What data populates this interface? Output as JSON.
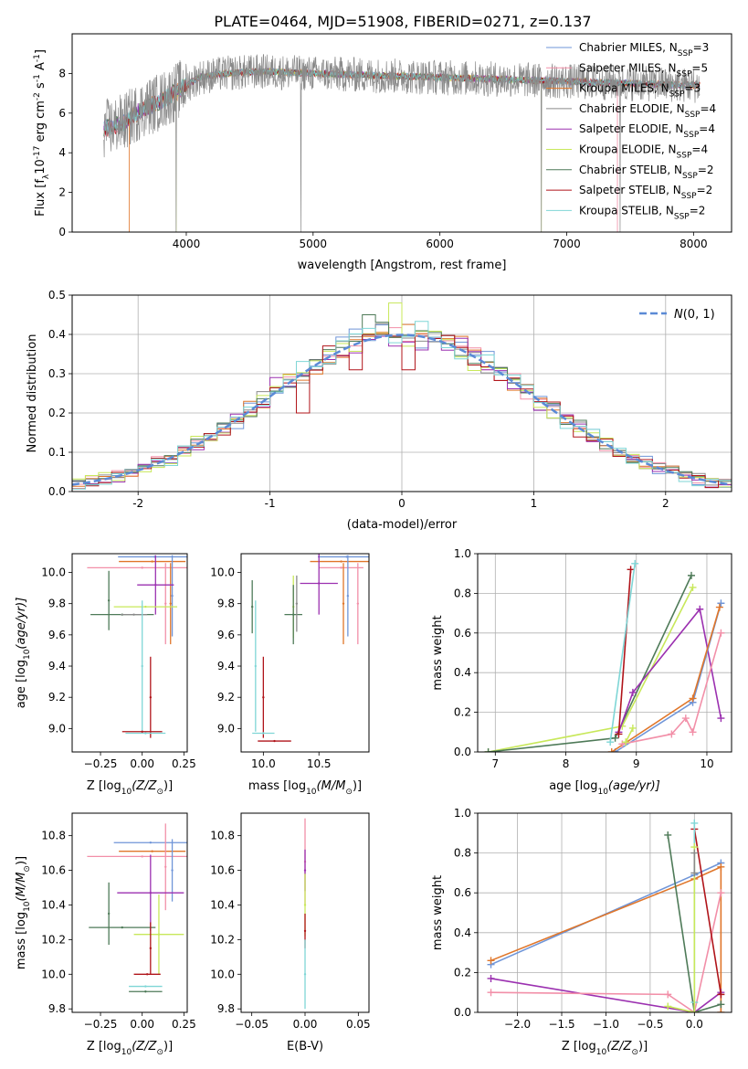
{
  "figure": {
    "title": "PLATE=0464, MJD=51908, FIBERID=0271, z=0.137"
  },
  "colors": {
    "chabrier_miles": "#6f95d8",
    "salpeter_miles": "#f28fa8",
    "kroupa_miles": "#e0762a",
    "chabrier_elodie": "#8a8a8a",
    "salpeter_elodie": "#9b30b0",
    "kroupa_elodie": "#c8e85a",
    "chabrier_stelib": "#4e7a58",
    "salpeter_stelib": "#b0141a",
    "kroupa_stelib": "#7fd6d6",
    "normal": "#5b8ad6"
  },
  "chart_data": [
    {
      "id": "spectrum",
      "type": "line",
      "title": "",
      "xlabel": "wavelength [Angstrom, rest frame]",
      "ylabel": "Flux [f",
      "ylabel_parts": [
        "Flux [f",
        "λ",
        "10",
        "-17",
        " erg cm",
        "-2",
        " s",
        "-1",
        " A",
        "-1",
        "]"
      ],
      "xlim": [
        3100,
        8300
      ],
      "ylim": [
        0,
        10
      ],
      "xticks": [
        4000,
        5000,
        6000,
        7000,
        8000
      ],
      "yticks": [
        0,
        2,
        4,
        6,
        8
      ],
      "grid": false,
      "legend_position": "top-right",
      "legend": [
        {
          "key": "chabrier_miles",
          "label": "Chabrier MILES, N",
          "sub": "SSP",
          "suffix": "=3"
        },
        {
          "key": "salpeter_miles",
          "label": "Salpeter MILES, N",
          "sub": "SSP",
          "suffix": "=5"
        },
        {
          "key": "kroupa_miles",
          "label": "Kroupa MILES, N",
          "sub": "SSP",
          "suffix": "=3"
        },
        {
          "key": "chabrier_elodie",
          "label": "Chabrier ELODIE, N",
          "sub": "SSP",
          "suffix": "=4"
        },
        {
          "key": "salpeter_elodie",
          "label": "Salpeter ELODIE, N",
          "sub": "SSP",
          "suffix": "=4"
        },
        {
          "key": "kroupa_elodie",
          "label": "Kroupa ELODIE, N",
          "sub": "SSP",
          "suffix": "=4"
        },
        {
          "key": "chabrier_stelib",
          "label": "Chabrier STELIB, N",
          "sub": "SSP",
          "suffix": "=2"
        },
        {
          "key": "salpeter_stelib",
          "label": "Salpeter STELIB, N",
          "sub": "SSP",
          "suffix": "=2"
        },
        {
          "key": "kroupa_stelib",
          "label": "Kroupa STELIB, N",
          "sub": "SSP",
          "suffix": "=2"
        }
      ],
      "data_trend": {
        "x": [
          3350,
          3500,
          3650,
          3800,
          3950,
          4100,
          4300,
          4600,
          5000,
          5500,
          6000,
          6500,
          7000,
          7500,
          8000,
          8050
        ],
        "y": [
          5.2,
          5.5,
          6.2,
          6.6,
          7.2,
          7.8,
          8.0,
          8.1,
          8.0,
          7.9,
          7.8,
          7.7,
          7.6,
          7.5,
          7.4,
          7.4
        ]
      },
      "model_cutoffs": {
        "kroupa_miles_start": 3550,
        "kroupa_elodie_start": 3920,
        "kroupa_elodie_end": 6800,
        "salpeter_miles_end": 7400
      },
      "spikes": [
        {
          "x": 3920,
          "y": 0.0
        },
        {
          "x": 4905,
          "y": 0.0
        },
        {
          "x": 6800,
          "y": 0.0
        },
        {
          "x": 7420,
          "y": 0.0
        }
      ]
    },
    {
      "id": "residuals",
      "type": "bar",
      "title": "",
      "xlabel": "(data-model)/error",
      "ylabel": "Normed distribution",
      "xlim": [
        -2.5,
        2.5
      ],
      "ylim": [
        0,
        0.5
      ],
      "xticks": [
        -2,
        -1,
        0,
        1,
        2
      ],
      "yticks": [
        0.0,
        0.1,
        0.2,
        0.3,
        0.4,
        0.5
      ],
      "grid": true,
      "legend_position": "top-right",
      "legend": [
        {
          "key": "normal",
          "label": "N(0, 1)"
        }
      ],
      "bin_width": 0.1,
      "series_keys": [
        "chabrier_miles",
        "salpeter_miles",
        "kroupa_miles",
        "chabrier_elodie",
        "salpeter_elodie",
        "kroupa_elodie",
        "chabrier_stelib",
        "salpeter_stelib",
        "kroupa_stelib"
      ],
      "highlight_bins": [
        {
          "x": -0.95,
          "key": "salpeter_elodie",
          "value": 0.29
        },
        {
          "x": -0.75,
          "key": "salpeter_stelib",
          "value": 0.2
        },
        {
          "x": -0.35,
          "key": "salpeter_stelib",
          "value": 0.31
        },
        {
          "x": -0.25,
          "key": "chabrier_stelib",
          "value": 0.45
        },
        {
          "x": -0.05,
          "key": "kroupa_elodie",
          "value": 0.48
        },
        {
          "x": 0.05,
          "key": "salpeter_stelib",
          "value": 0.31
        },
        {
          "x": 0.25,
          "key": "salpeter_elodie",
          "value": 0.39
        }
      ]
    },
    {
      "id": "z_age",
      "type": "scatter",
      "xlabel": "Z [log",
      "xlabel_parts": [
        "Z [log",
        "10",
        "(Z/Z",
        "⊙",
        ")]"
      ],
      "ylabel_parts": [
        "age  [log",
        "10",
        "(age/yr)]"
      ],
      "xlim": [
        -0.42,
        0.27
      ],
      "ylim": [
        8.85,
        10.12
      ],
      "xticks": [
        -0.25,
        0.0,
        0.25
      ],
      "xticklabels": [
        "−0.25",
        "0.00",
        "0.25"
      ],
      "yticks": [
        9.0,
        9.2,
        9.4,
        9.6,
        9.8,
        10.0
      ],
      "grid": false,
      "points": [
        {
          "key": "chabrier_miles",
          "x": 0.075,
          "y": 10.1,
          "xerr": 0.22,
          "yerr": 0.0
        },
        {
          "key": "kroupa_miles",
          "x": 0.06,
          "y": 10.07,
          "xerr": 0.2,
          "yerr": 0.0
        },
        {
          "key": "salpeter_miles",
          "x": 0.0,
          "y": 10.03,
          "xerr": 0.33,
          "yerr": 0.0
        },
        {
          "key": "salpeter_miles",
          "x": 0.14,
          "y": 9.8,
          "xerr": 0.0,
          "yerr": 0.26
        },
        {
          "key": "chabrier_miles",
          "x": 0.18,
          "y": 9.85,
          "xerr": 0.0,
          "yerr": 0.26
        },
        {
          "key": "kroupa_miles",
          "x": 0.17,
          "y": 9.8,
          "xerr": 0.0,
          "yerr": 0.26
        },
        {
          "key": "chabrier_stelib",
          "x": -0.2,
          "y": 9.82,
          "xerr": 0.0,
          "yerr": 0.19
        },
        {
          "key": "chabrier_stelib",
          "x": -0.12,
          "y": 9.73,
          "xerr": 0.19,
          "yerr": 0.0
        },
        {
          "key": "salpeter_elodie",
          "x": 0.08,
          "y": 9.92,
          "xerr": 0.11,
          "yerr": 0.19
        },
        {
          "key": "kroupa_elodie",
          "x": 0.02,
          "y": 9.78,
          "xerr": 0.19,
          "yerr": 0.0
        },
        {
          "key": "chabrier_elodie",
          "x": -0.05,
          "y": 9.73,
          "xerr": 0.08,
          "yerr": 0.0
        },
        {
          "key": "kroupa_stelib",
          "x": 0.0,
          "y": 9.4,
          "xerr": 0.0,
          "yerr": 0.42
        },
        {
          "key": "salpeter_stelib",
          "x": 0.05,
          "y": 9.2,
          "xerr": 0.0,
          "yerr": 0.26
        },
        {
          "key": "kroupa_stelib",
          "x": 0.02,
          "y": 8.97,
          "xerr": 0.12,
          "yerr": 0.0
        },
        {
          "key": "salpeter_stelib",
          "x": 0.0,
          "y": 8.98,
          "xerr": 0.12,
          "yerr": 0.0
        }
      ]
    },
    {
      "id": "mass_age",
      "type": "scatter",
      "xlabel_parts": [
        "mass [log",
        "10",
        "(M/M",
        "⊙",
        ")]"
      ],
      "xlim": [
        9.8,
        10.95
      ],
      "ylim": [
        8.85,
        10.12
      ],
      "xticks": [
        10.0,
        10.5
      ],
      "xticklabels": [
        "10.0",
        "10.5"
      ],
      "yticks": [
        9.0,
        9.2,
        9.4,
        9.6,
        9.8,
        10.0
      ],
      "grid": false,
      "points": [
        {
          "key": "chabrier_miles",
          "x": 10.75,
          "y": 10.1,
          "xerr": 0.26,
          "yerr": 0.0
        },
        {
          "key": "kroupa_miles",
          "x": 10.7,
          "y": 10.07,
          "xerr": 0.28,
          "yerr": 0.0
        },
        {
          "key": "salpeter_miles",
          "x": 10.7,
          "y": 10.03,
          "xerr": 0.2,
          "yerr": 0.0
        },
        {
          "key": "salpeter_miles",
          "x": 10.85,
          "y": 9.8,
          "xerr": 0.0,
          "yerr": 0.26
        },
        {
          "key": "chabrier_miles",
          "x": 10.76,
          "y": 9.85,
          "xerr": 0.0,
          "yerr": 0.26
        },
        {
          "key": "kroupa_miles",
          "x": 10.72,
          "y": 9.8,
          "xerr": 0.0,
          "yerr": 0.26
        },
        {
          "key": "salpeter_elodie",
          "x": 10.5,
          "y": 9.93,
          "xerr": 0.17,
          "yerr": 0.2
        },
        {
          "key": "kroupa_elodie",
          "x": 10.27,
          "y": 9.78,
          "xerr": 0.0,
          "yerr": 0.2
        },
        {
          "key": "chabrier_stelib",
          "x": 10.27,
          "y": 9.73,
          "xerr": 0.08,
          "yerr": 0.19
        },
        {
          "key": "chabrier_elodie",
          "x": 10.3,
          "y": 9.8,
          "xerr": 0.0,
          "yerr": 0.18
        },
        {
          "key": "chabrier_stelib",
          "x": 9.9,
          "y": 9.78,
          "xerr": 0.0,
          "yerr": 0.17
        },
        {
          "key": "kroupa_stelib",
          "x": 9.93,
          "y": 9.4,
          "xerr": 0.0,
          "yerr": 0.42
        },
        {
          "key": "salpeter_stelib",
          "x": 10.0,
          "y": 9.2,
          "xerr": 0.0,
          "yerr": 0.26
        },
        {
          "key": "kroupa_stelib",
          "x": 10.0,
          "y": 8.97,
          "xerr": 0.1,
          "yerr": 0.0
        },
        {
          "key": "salpeter_stelib",
          "x": 10.1,
          "y": 8.92,
          "xerr": 0.15,
          "yerr": 0.0
        }
      ]
    },
    {
      "id": "age_weight",
      "type": "line",
      "xlabel_parts": [
        "age  [log",
        "10",
        "(age/yr)]"
      ],
      "ylabel": "mass weight",
      "xlim": [
        6.75,
        10.35
      ],
      "ylim": [
        0,
        1
      ],
      "xticks": [
        7,
        8,
        9,
        10
      ],
      "yticks": [
        0.0,
        0.2,
        0.4,
        0.6,
        0.8,
        1.0
      ],
      "grid": true,
      "series": [
        {
          "key": "kroupa_elodie",
          "x": [
            6.9,
            8.8,
            9.8
          ],
          "y": [
            0.0,
            0.13,
            0.83
          ]
        },
        {
          "key": "chabrier_stelib",
          "x": [
            6.9,
            8.7,
            9.78
          ],
          "y": [
            0.0,
            0.07,
            0.89
          ]
        },
        {
          "key": "salpeter_elodie",
          "x": [
            8.75,
            8.95,
            9.9,
            10.2
          ],
          "y": [
            0.1,
            0.3,
            0.72,
            0.17
          ]
        },
        {
          "key": "salpeter_stelib",
          "x": [
            8.75,
            8.92
          ],
          "y": [
            0.09,
            0.92
          ]
        },
        {
          "key": "kroupa_stelib",
          "x": [
            8.63,
            8.98
          ],
          "y": [
            0.05,
            0.95
          ]
        },
        {
          "key": "chabrier_miles",
          "x": [
            8.7,
            9.8,
            10.2
          ],
          "y": [
            0.0,
            0.25,
            0.75
          ]
        },
        {
          "key": "kroupa_miles",
          "x": [
            8.65,
            9.8,
            10.18
          ],
          "y": [
            0.0,
            0.27,
            0.73
          ]
        },
        {
          "key": "salpeter_miles",
          "x": [
            8.8,
            9.5,
            9.7,
            9.8,
            10.2
          ],
          "y": [
            0.04,
            0.09,
            0.17,
            0.1,
            0.6
          ]
        },
        {
          "key": "kroupa_elodie",
          "x": [
            8.85,
            8.95
          ],
          "y": [
            0.05,
            0.12
          ]
        }
      ]
    },
    {
      "id": "z_mass",
      "type": "scatter",
      "xlabel_parts": [
        "Z [log",
        "10",
        "(Z/Z",
        "⊙",
        ")]"
      ],
      "ylabel_parts": [
        "mass [log",
        "10",
        "(M/M",
        "⊙",
        ")]"
      ],
      "xlim": [
        -0.42,
        0.27
      ],
      "ylim": [
        9.78,
        10.93
      ],
      "xticks": [
        -0.25,
        0.0,
        0.25
      ],
      "xticklabels": [
        "−0.25",
        "0.00",
        "0.25"
      ],
      "yticks": [
        9.8,
        10.0,
        10.2,
        10.4,
        10.6,
        10.8
      ],
      "grid": false,
      "points": [
        {
          "key": "chabrier_miles",
          "x": 0.05,
          "y": 10.76,
          "xerr": 0.22,
          "yerr": 0.0
        },
        {
          "key": "kroupa_miles",
          "x": 0.06,
          "y": 10.71,
          "xerr": 0.2,
          "yerr": 0.0
        },
        {
          "key": "salpeter_miles",
          "x": 0.0,
          "y": 10.68,
          "xerr": 0.33,
          "yerr": 0.0
        },
        {
          "key": "salpeter_miles",
          "x": 0.14,
          "y": 10.62,
          "xerr": 0.0,
          "yerr": 0.25
        },
        {
          "key": "chabrier_miles",
          "x": 0.18,
          "y": 10.6,
          "xerr": 0.0,
          "yerr": 0.18
        },
        {
          "key": "salpeter_elodie",
          "x": 0.05,
          "y": 10.47,
          "xerr": 0.2,
          "yerr": 0.22
        },
        {
          "key": "chabrier_stelib",
          "x": -0.2,
          "y": 10.35,
          "xerr": 0.0,
          "yerr": 0.18
        },
        {
          "key": "chabrier_stelib",
          "x": -0.12,
          "y": 10.27,
          "xerr": 0.2,
          "yerr": 0.0
        },
        {
          "key": "kroupa_elodie",
          "x": 0.1,
          "y": 10.23,
          "xerr": 0.15,
          "yerr": 0.23
        },
        {
          "key": "salpeter_stelib",
          "x": 0.05,
          "y": 10.15,
          "xerr": 0.0,
          "yerr": 0.15
        },
        {
          "key": "salpeter_stelib",
          "x": 0.03,
          "y": 10.0,
          "xerr": 0.08,
          "yerr": 0.0
        },
        {
          "key": "kroupa_stelib",
          "x": 0.02,
          "y": 9.93,
          "xerr": 0.1,
          "yerr": 0.0
        },
        {
          "key": "chabrier_stelib",
          "x": 0.02,
          "y": 9.9,
          "xerr": 0.1,
          "yerr": 0.0
        }
      ]
    },
    {
      "id": "ebv_mass",
      "type": "scatter",
      "xlabel": "E(B-V)",
      "xlim": [
        -0.06,
        0.06
      ],
      "ylim": [
        9.78,
        10.93
      ],
      "xticks": [
        -0.05,
        0.0,
        0.05
      ],
      "xticklabels": [
        "−0.05",
        "0.00",
        "0.05"
      ],
      "yticks": [
        9.8,
        10.0,
        10.2,
        10.4,
        10.6,
        10.8
      ],
      "grid": false,
      "points": [
        {
          "key": "salpeter_miles",
          "x": 0.0,
          "y": 10.65,
          "xerr": 0.0,
          "yerr": 0.25
        },
        {
          "key": "salpeter_elodie",
          "x": 0.0,
          "y": 10.6,
          "xerr": 0.0,
          "yerr": 0.12
        },
        {
          "key": "kroupa_elodie",
          "x": 0.0,
          "y": 10.4,
          "xerr": 0.0,
          "yerr": 0.18
        },
        {
          "key": "salpeter_stelib",
          "x": 0.0,
          "y": 10.25,
          "xerr": 0.0,
          "yerr": 0.1
        },
        {
          "key": "kroupa_stelib",
          "x": 0.0,
          "y": 10.0,
          "xerr": 0.0,
          "yerr": 0.2
        }
      ]
    },
    {
      "id": "z_weight",
      "type": "line",
      "xlabel_parts": [
        "Z [log",
        "10",
        "(Z/Z",
        "⊙",
        ")]"
      ],
      "ylabel": "mass weight",
      "xlim": [
        -2.45,
        0.42
      ],
      "ylim": [
        0,
        1
      ],
      "xticks": [
        -2.0,
        -1.5,
        -1.0,
        -0.5,
        0.0
      ],
      "xticklabels": [
        "−2.0",
        "−1.5",
        "−1.0",
        "−0.5",
        "0.0"
      ],
      "yticks": [
        0.0,
        0.2,
        0.4,
        0.6,
        0.8,
        1.0
      ],
      "grid": true,
      "series": [
        {
          "key": "chabrier_miles",
          "x": [
            -2.3,
            0.0,
            0.3
          ],
          "y": [
            0.24,
            0.69,
            0.75
          ]
        },
        {
          "key": "kroupa_miles",
          "x": [
            -2.3,
            0.0,
            0.3,
            0.3
          ],
          "y": [
            0.26,
            0.67,
            0.73,
            0.0
          ]
        },
        {
          "key": "salpeter_elodie",
          "x": [
            -2.3,
            0.0,
            0.3
          ],
          "y": [
            0.17,
            0.0,
            0.1
          ]
        },
        {
          "key": "salpeter_miles",
          "x": [
            -2.3,
            -0.3,
            0.0,
            0.3
          ],
          "y": [
            0.1,
            0.09,
            0.0,
            0.6
          ]
        },
        {
          "key": "chabrier_stelib",
          "x": [
            -0.3,
            0.0,
            0.3
          ],
          "y": [
            0.89,
            0.0,
            0.04
          ]
        },
        {
          "key": "salpeter_stelib",
          "x": [
            0.0,
            0.3
          ],
          "y": [
            0.92,
            0.09
          ]
        },
        {
          "key": "kroupa_stelib",
          "x": [
            0.0,
            0.0
          ],
          "y": [
            0.95,
            0.05
          ]
        },
        {
          "key": "kroupa_elodie",
          "x": [
            -0.3,
            0.0,
            0.0
          ],
          "y": [
            0.03,
            0.0,
            0.83
          ]
        },
        {
          "key": "chabrier_elodie",
          "x": [
            0.0,
            0.0
          ],
          "y": [
            0.8,
            0.7
          ]
        }
      ]
    }
  ]
}
